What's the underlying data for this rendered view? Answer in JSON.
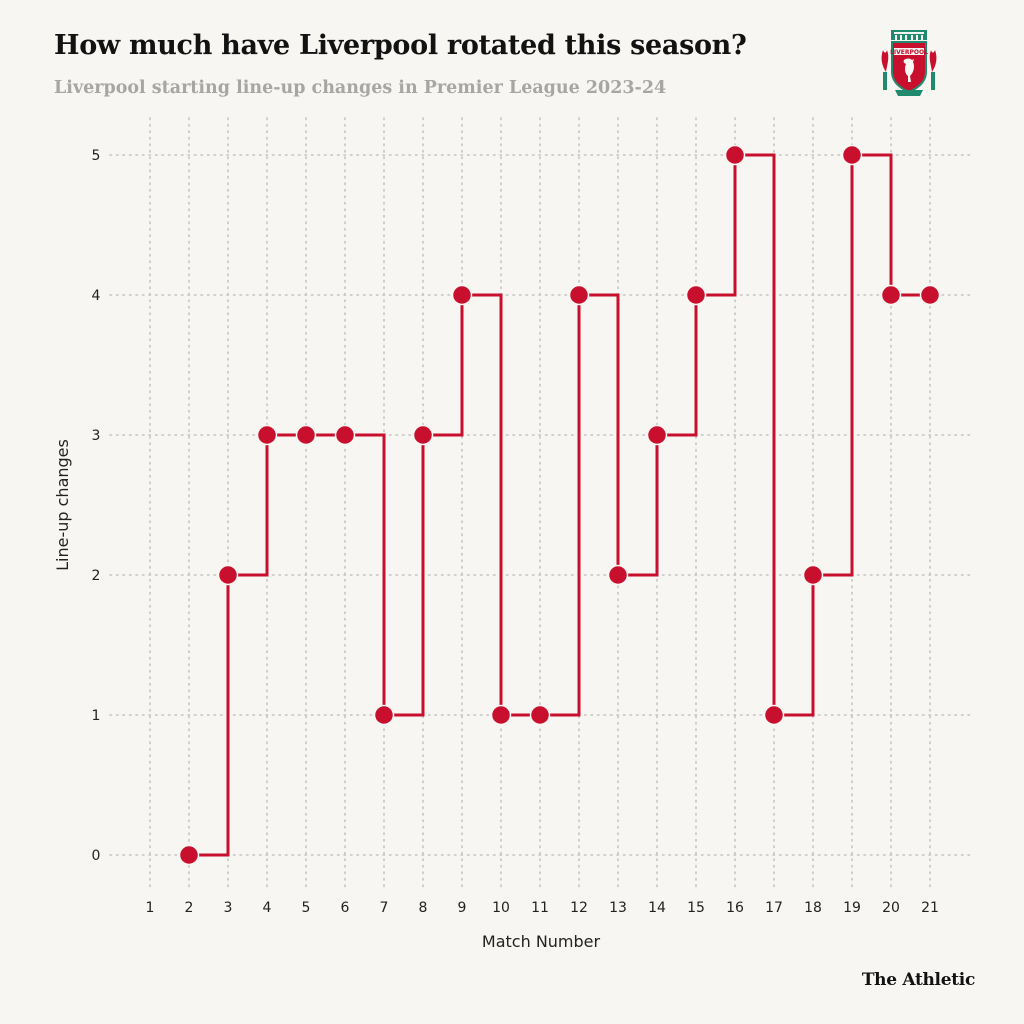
{
  "header": {
    "title": "How much have Liverpool rotated this season?",
    "subtitle": "Liverpool starting line-up changes in Premier League 2023-24"
  },
  "footer": {
    "brand": "The Athletic"
  },
  "crest": {
    "icon": "liverpool-crest-icon",
    "text": "LIVERPOOL"
  },
  "colors": {
    "line": "#c8102e",
    "grid": "#c4c4c0"
  },
  "chart_data": {
    "type": "line",
    "line_style": "step-after",
    "title": "How much have Liverpool rotated this season?",
    "subtitle": "Liverpool starting line-up changes in Premier League 2023-24",
    "xlabel": "Match Number",
    "ylabel": "Line-up changes",
    "x_ticks": [
      1,
      2,
      3,
      4,
      5,
      6,
      7,
      8,
      9,
      10,
      11,
      12,
      13,
      14,
      15,
      16,
      17,
      18,
      19,
      20,
      21
    ],
    "y_ticks": [
      0,
      1,
      2,
      3,
      4,
      5
    ],
    "xlim": [
      0.5,
      21.5
    ],
    "ylim": [
      -0.2,
      5.2
    ],
    "grid": true,
    "series": [
      {
        "name": "Line-up changes",
        "x": [
          2,
          3,
          4,
          5,
          6,
          7,
          8,
          9,
          10,
          11,
          12,
          13,
          14,
          15,
          16,
          17,
          18,
          19,
          20,
          21
        ],
        "values": [
          0,
          2,
          3,
          3,
          3,
          1,
          3,
          4,
          1,
          1,
          4,
          2,
          3,
          4,
          5,
          1,
          2,
          5,
          4,
          4
        ]
      }
    ]
  }
}
